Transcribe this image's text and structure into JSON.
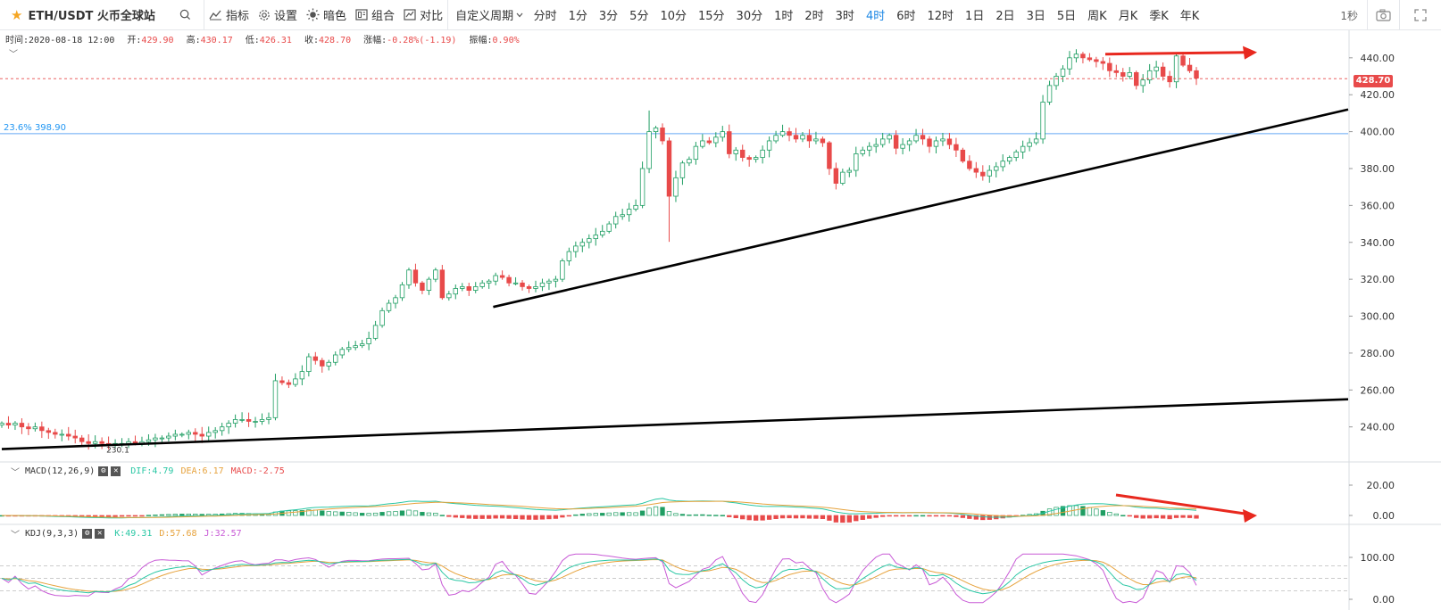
{
  "toolbar": {
    "symbol": "ETH/USDT 火币全球站",
    "indicators": "指标",
    "settings": "设置",
    "theme": "暗色",
    "combo": "组合",
    "compare": "对比",
    "custom_period": "自定义周期",
    "periods": [
      "分时",
      "1分",
      "3分",
      "5分",
      "10分",
      "15分",
      "30分",
      "1时",
      "2时",
      "3时",
      "4时",
      "6时",
      "12时",
      "1日",
      "2日",
      "3日",
      "5日",
      "周K",
      "月K",
      "季K",
      "年K"
    ],
    "active_period": "4时",
    "refresh": "1秒"
  },
  "info": {
    "time_label": "时间:",
    "time": "2020-08-18 12:00",
    "open_label": "开:",
    "open": "429.90",
    "high_label": "高:",
    "high": "430.17",
    "low_label": "低:",
    "low": "426.31",
    "close_label": "收:",
    "close": "428.70",
    "change_label": "涨幅:",
    "change": "-0.28%(-1.19)",
    "amp_label": "振幅:",
    "amp": "0.90%"
  },
  "chart_data": {
    "type": "candlestick",
    "y_ticks": [
      "440.00",
      "420.00",
      "400.00",
      "380.00",
      "360.00",
      "340.00",
      "320.00",
      "300.00",
      "280.00",
      "260.00",
      "240.00"
    ],
    "ylim": [
      221,
      452
    ],
    "last_price": "428.70",
    "fib_label": "23.6% 398.90",
    "fib_value": 398.9,
    "low_annotation": "230.1",
    "trendlines": [
      {
        "from": [
          0,
          228
        ],
        "to": [
          1,
          255
        ],
        "color": "#000000"
      },
      {
        "from": [
          0.365,
          305
        ],
        "to": [
          1,
          412
        ],
        "color": "#000000"
      }
    ],
    "price_arrow_color": "#e8281e",
    "closes": [
      242,
      241,
      242,
      240,
      239,
      240,
      238,
      237,
      236,
      236,
      235,
      234,
      232,
      231,
      232,
      231,
      230,
      231,
      231,
      232,
      231,
      232,
      233,
      234,
      234,
      235,
      236,
      236,
      237,
      236,
      235,
      237,
      238,
      240,
      242,
      244,
      244,
      243,
      243,
      244,
      245,
      265,
      264,
      263,
      266,
      270,
      278,
      276,
      273,
      275,
      279,
      282,
      283,
      284,
      285,
      288,
      295,
      303,
      307,
      310,
      317,
      325,
      318,
      314,
      320,
      325,
      310,
      312,
      315,
      316,
      314,
      316,
      318,
      319,
      322,
      321,
      318,
      318,
      316,
      315,
      316,
      318,
      319,
      320,
      330,
      335,
      338,
      340,
      342,
      344,
      346,
      350,
      354,
      355,
      358,
      360,
      380,
      400,
      402,
      395,
      365,
      375,
      383,
      385,
      392,
      395,
      394,
      397,
      400,
      388,
      390,
      386,
      385,
      386,
      390,
      395,
      398,
      400,
      398,
      396,
      398,
      395,
      396,
      394,
      380,
      372,
      378,
      379,
      388,
      390,
      392,
      393,
      396,
      398,
      391,
      393,
      395,
      398,
      396,
      392,
      395,
      396,
      393,
      390,
      384,
      380,
      378,
      376,
      379,
      381,
      384,
      386,
      389,
      392,
      394,
      396,
      416,
      425,
      430,
      434,
      440,
      442,
      440,
      439,
      438,
      437,
      433,
      432,
      430,
      432,
      425,
      428,
      433,
      435,
      430,
      427,
      441,
      436,
      433,
      429
    ],
    "macd": {
      "label": "MACD(12,26,9)",
      "dif_label": "DIF:4.79",
      "dea_label": "DEA:6.17",
      "macd_label": "MACD:-2.75",
      "y_ticks": [
        "20.00",
        "0.00"
      ],
      "colors": {
        "dif": "#29c7a4",
        "dea": "#e6a23c",
        "hist_up": "#1f9e63",
        "hist_down": "#e84a4a"
      }
    },
    "kdj": {
      "label": "KDJ(9,3,3)",
      "k_label": "K:49.31",
      "d_label": "D:57.68",
      "j_label": "J:32.57",
      "y_ticks": [
        "100.00",
        "0.00"
      ],
      "colors": {
        "k": "#29c7a4",
        "d": "#e6a23c",
        "j": "#c85ad6"
      }
    }
  }
}
